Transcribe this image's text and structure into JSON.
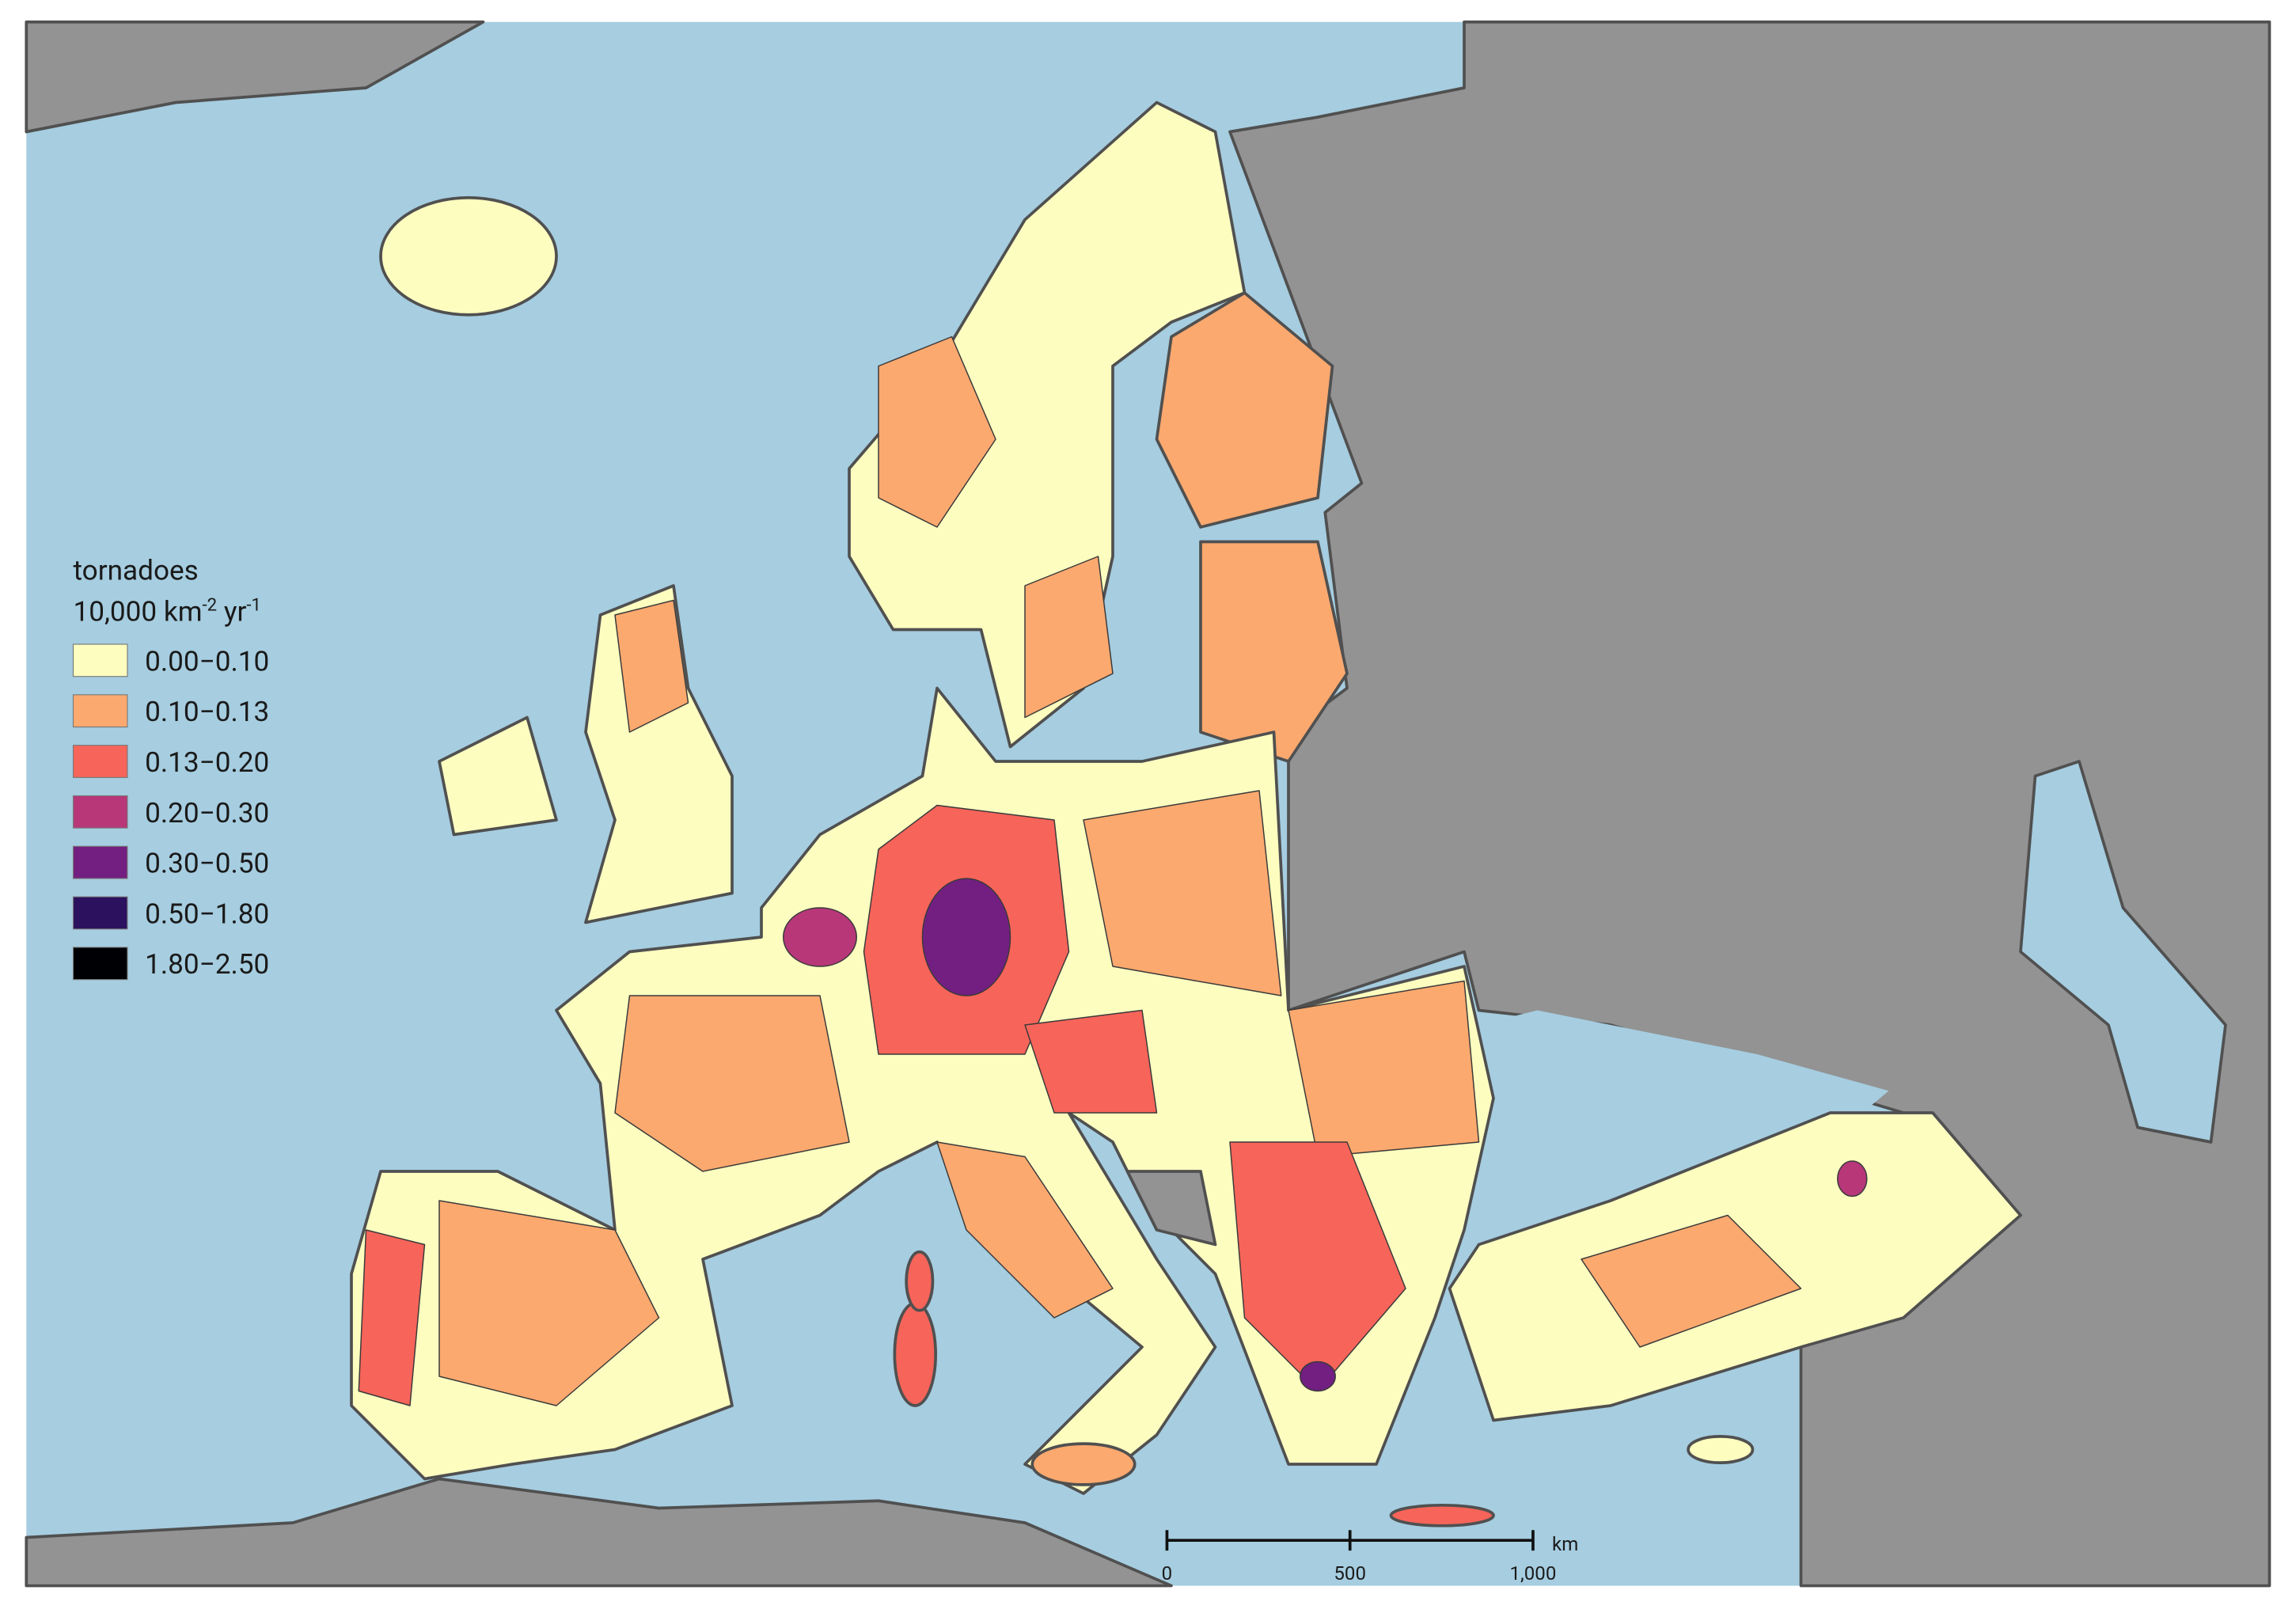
{
  "legend": {
    "title": "tornadoes",
    "unit_parts": [
      "10,000 km",
      "-2",
      " yr",
      "-1"
    ],
    "items": [
      {
        "label": "0.00−0.10",
        "color": "#fcfdbf"
      },
      {
        "label": "0.10−0.13",
        "color": "#fca96f"
      },
      {
        "label": "0.13−0.20",
        "color": "#f7645a"
      },
      {
        "label": "0.20−0.30",
        "color": "#b73779"
      },
      {
        "label": "0.30−0.50",
        "color": "#721f81"
      },
      {
        "label": "0.50−1.80",
        "color": "#2c115f"
      },
      {
        "label": "1.80−2.50",
        "color": "#000004"
      }
    ]
  },
  "scale_bar": {
    "unit": "km",
    "ticks": [
      0,
      500,
      {
        "value": 1000,
        "label": "1,000"
      }
    ]
  }
}
